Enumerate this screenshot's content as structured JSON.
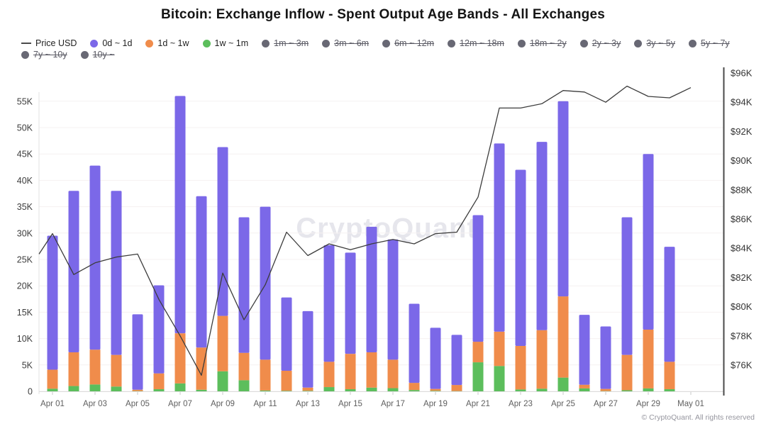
{
  "title": "Bitcoin: Exchange Inflow - Spent Output Age Bands - All Exchanges",
  "watermark": "CryptoQuant",
  "footer": "© CryptoQuant. All rights reserved",
  "colors": {
    "purple": "#7b68e8",
    "orange": "#f08c4b",
    "green": "#5cbe5c",
    "inactive_gray": "#686874",
    "price_line": "#3c3c3c"
  },
  "legend": {
    "rows": [
      [
        {
          "label": "Price USD",
          "type": "line",
          "color": "#4a4a4a",
          "active": true
        },
        {
          "label": "0d ~ 1d",
          "type": "dot",
          "color": "#7b68e8",
          "active": true
        },
        {
          "label": "1d ~ 1w",
          "type": "dot",
          "color": "#f08c4b",
          "active": true
        },
        {
          "label": "1w ~ 1m",
          "type": "dot",
          "color": "#5cbe5c",
          "active": true
        },
        {
          "label": "1m ~ 3m",
          "type": "dot",
          "color": "#686874",
          "active": false
        },
        {
          "label": "3m ~ 6m",
          "type": "dot",
          "color": "#686874",
          "active": false
        },
        {
          "label": "6m ~ 12m",
          "type": "dot",
          "color": "#686874",
          "active": false
        },
        {
          "label": "12m ~ 18m",
          "type": "dot",
          "color": "#686874",
          "active": false
        },
        {
          "label": "18m ~ 2y",
          "type": "dot",
          "color": "#686874",
          "active": false
        },
        {
          "label": "2y ~ 3y",
          "type": "dot",
          "color": "#686874",
          "active": false
        },
        {
          "label": "3y ~ 5y",
          "type": "dot",
          "color": "#686874",
          "active": false
        },
        {
          "label": "5y ~ 7y",
          "type": "dot",
          "color": "#686874",
          "active": false
        }
      ],
      [
        {
          "label": "7y ~ 10y",
          "type": "dot",
          "color": "#686874",
          "active": false
        },
        {
          "label": "10y ~",
          "type": "dot",
          "color": "#686874",
          "active": false
        }
      ]
    ]
  },
  "chart_data": {
    "type": "bar",
    "stacked": true,
    "title": "Bitcoin: Exchange Inflow - Spent Output Age Bands - All Exchanges",
    "grid": "horizontal-faint",
    "categories": [
      "Apr 01",
      "Apr 02",
      "Apr 03",
      "Apr 04",
      "Apr 05",
      "Apr 06",
      "Apr 07",
      "Apr 08",
      "Apr 09",
      "Apr 10",
      "Apr 11",
      "Apr 12",
      "Apr 13",
      "Apr 14",
      "Apr 15",
      "Apr 16",
      "Apr 17",
      "Apr 18",
      "Apr 19",
      "Apr 20",
      "Apr 21",
      "Apr 22",
      "Apr 23",
      "Apr 24",
      "Apr 25",
      "Apr 26",
      "Apr 27",
      "Apr 28",
      "Apr 29",
      "Apr 30"
    ],
    "series": [
      {
        "name": "1w ~ 1m",
        "color": "#5cbe5c",
        "values": [
          0.5,
          1.0,
          1.3,
          0.9,
          0.05,
          0.4,
          1.5,
          0.3,
          3.8,
          2.1,
          0.15,
          0.1,
          0.1,
          0.8,
          0.4,
          0.7,
          0.6,
          0.25,
          0.1,
          0.05,
          5.5,
          4.8,
          0.35,
          0.5,
          2.6,
          0.55,
          0.05,
          0.2,
          0.55,
          0.4
        ]
      },
      {
        "name": "1d ~ 1w",
        "color": "#f08c4b",
        "values": [
          3.6,
          6.4,
          6.6,
          6.0,
          0.25,
          3.0,
          9.5,
          8.0,
          10.5,
          5.2,
          5.85,
          3.8,
          0.6,
          4.8,
          6.7,
          6.7,
          5.4,
          1.35,
          0.35,
          1.15,
          3.9,
          6.5,
          8.25,
          11.1,
          15.4,
          0.7,
          0.4,
          6.7,
          11.15,
          5.2
        ]
      },
      {
        "name": "0d ~ 1d",
        "color": "#7b68e8",
        "values": [
          25.4,
          30.6,
          34.9,
          31.1,
          14.3,
          16.7,
          45.0,
          28.7,
          32.0,
          25.7,
          29.0,
          13.9,
          14.5,
          22.1,
          19.2,
          23.8,
          22.8,
          15.0,
          11.6,
          9.5,
          24.0,
          35.7,
          33.4,
          35.7,
          37.0,
          13.25,
          11.85,
          26.1,
          33.3,
          21.8
        ]
      }
    ],
    "bar_totals_k": [
      29.5,
      38.0,
      42.8,
      38.0,
      14.6,
      20.1,
      56.0,
      37.0,
      46.3,
      33.0,
      35.0,
      17.8,
      15.2,
      27.7,
      26.3,
      31.2,
      28.8,
      16.6,
      12.05,
      10.7,
      33.4,
      47.0,
      42.0,
      47.3,
      55.0,
      14.5,
      12.3,
      33.0,
      45.0,
      27.4
    ],
    "price_line": {
      "name": "Price USD",
      "color": "#3c3c3c",
      "lead_in_usd_k": 83.6,
      "x": [
        "Apr 01",
        "Apr 02",
        "Apr 03",
        "Apr 04",
        "Apr 05",
        "Apr 06",
        "Apr 07",
        "Apr 08",
        "Apr 09",
        "Apr 10",
        "Apr 11",
        "Apr 12",
        "Apr 13",
        "Apr 14",
        "Apr 15",
        "Apr 16",
        "Apr 17",
        "Apr 18",
        "Apr 19",
        "Apr 20",
        "Apr 21",
        "Apr 22",
        "Apr 23",
        "Apr 24",
        "Apr 25",
        "Apr 26",
        "Apr 27",
        "Apr 28",
        "Apr 29",
        "Apr 30",
        "May 01"
      ],
      "values_usd_k": [
        85.0,
        82.2,
        83.0,
        83.4,
        83.6,
        80.5,
        78.0,
        75.3,
        82.3,
        79.1,
        81.5,
        85.1,
        83.5,
        84.3,
        83.9,
        84.3,
        84.6,
        84.3,
        85.0,
        85.1,
        87.5,
        93.6,
        93.6,
        93.9,
        94.8,
        94.7,
        94.0,
        95.1,
        94.4,
        94.3,
        95.0
      ]
    },
    "left_axis": {
      "tick_values": [
        0,
        5,
        10,
        15,
        20,
        25,
        30,
        35,
        40,
        45,
        50,
        55
      ],
      "tick_labels": [
        "0",
        "5K",
        "10K",
        "15K",
        "20K",
        "25K",
        "30K",
        "35K",
        "40K",
        "45K",
        "50K",
        "55K"
      ]
    },
    "right_axis": {
      "tick_values": [
        76,
        78,
        80,
        82,
        84,
        86,
        88,
        90,
        92,
        94,
        96
      ],
      "tick_labels": [
        "$76K",
        "$78K",
        "$80K",
        "$82K",
        "$84K",
        "$86K",
        "$88K",
        "$90K",
        "$92K",
        "$94K",
        "$96K"
      ]
    },
    "x_tick_labels": [
      "Apr 01",
      "Apr 03",
      "Apr 05",
      "Apr 07",
      "Apr 09",
      "Apr 11",
      "Apr 13",
      "Apr 15",
      "Apr 17",
      "Apr 19",
      "Apr 21",
      "Apr 23",
      "Apr 25",
      "Apr 27",
      "Apr 29",
      "May 01"
    ]
  }
}
